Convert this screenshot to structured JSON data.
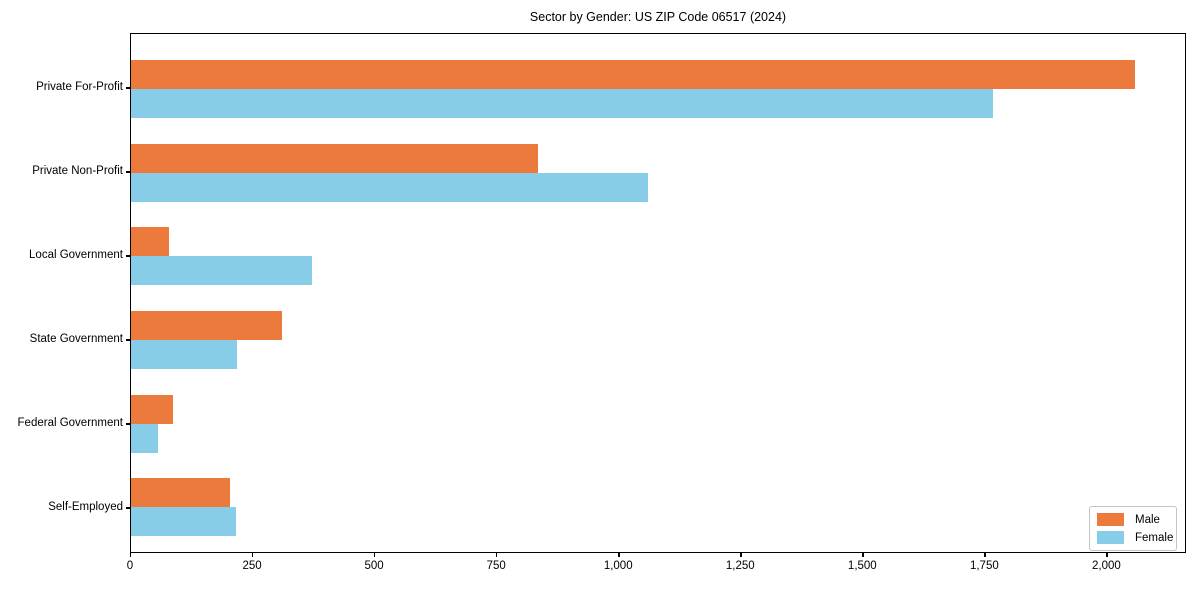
{
  "title": "Sector by Gender: US ZIP Code 06517 (2024)",
  "chart_data": {
    "type": "bar",
    "orientation": "horizontal",
    "title": "Sector by Gender: US ZIP Code 06517 (2024)",
    "xlabel": "",
    "ylabel": "",
    "categories": [
      "Private For-Profit",
      "Private Non-Profit",
      "Local Government",
      "State Government",
      "Federal Government",
      "Self-Employed"
    ],
    "series": [
      {
        "name": "Male",
        "color": "#eb7a3c",
        "values": [
          2060,
          836,
          77,
          309,
          87,
          203
        ]
      },
      {
        "name": "Female",
        "color": "#87cde8",
        "values": [
          1768,
          1062,
          371,
          217,
          56,
          216
        ]
      }
    ],
    "xlim": [
      0,
      2163
    ],
    "xticks": [
      0,
      250,
      500,
      750,
      1000,
      1250,
      1500,
      1750,
      2000
    ],
    "xtick_labels": [
      "0",
      "250",
      "500",
      "750",
      "1,000",
      "1,250",
      "1,500",
      "1,750",
      "2,000"
    ],
    "grid": false,
    "legend_position": "lower right",
    "spines": "box"
  },
  "legend": {
    "items": [
      {
        "label": "Male",
        "color": "#eb7a3c"
      },
      {
        "label": "Female",
        "color": "#87cde8"
      }
    ]
  }
}
